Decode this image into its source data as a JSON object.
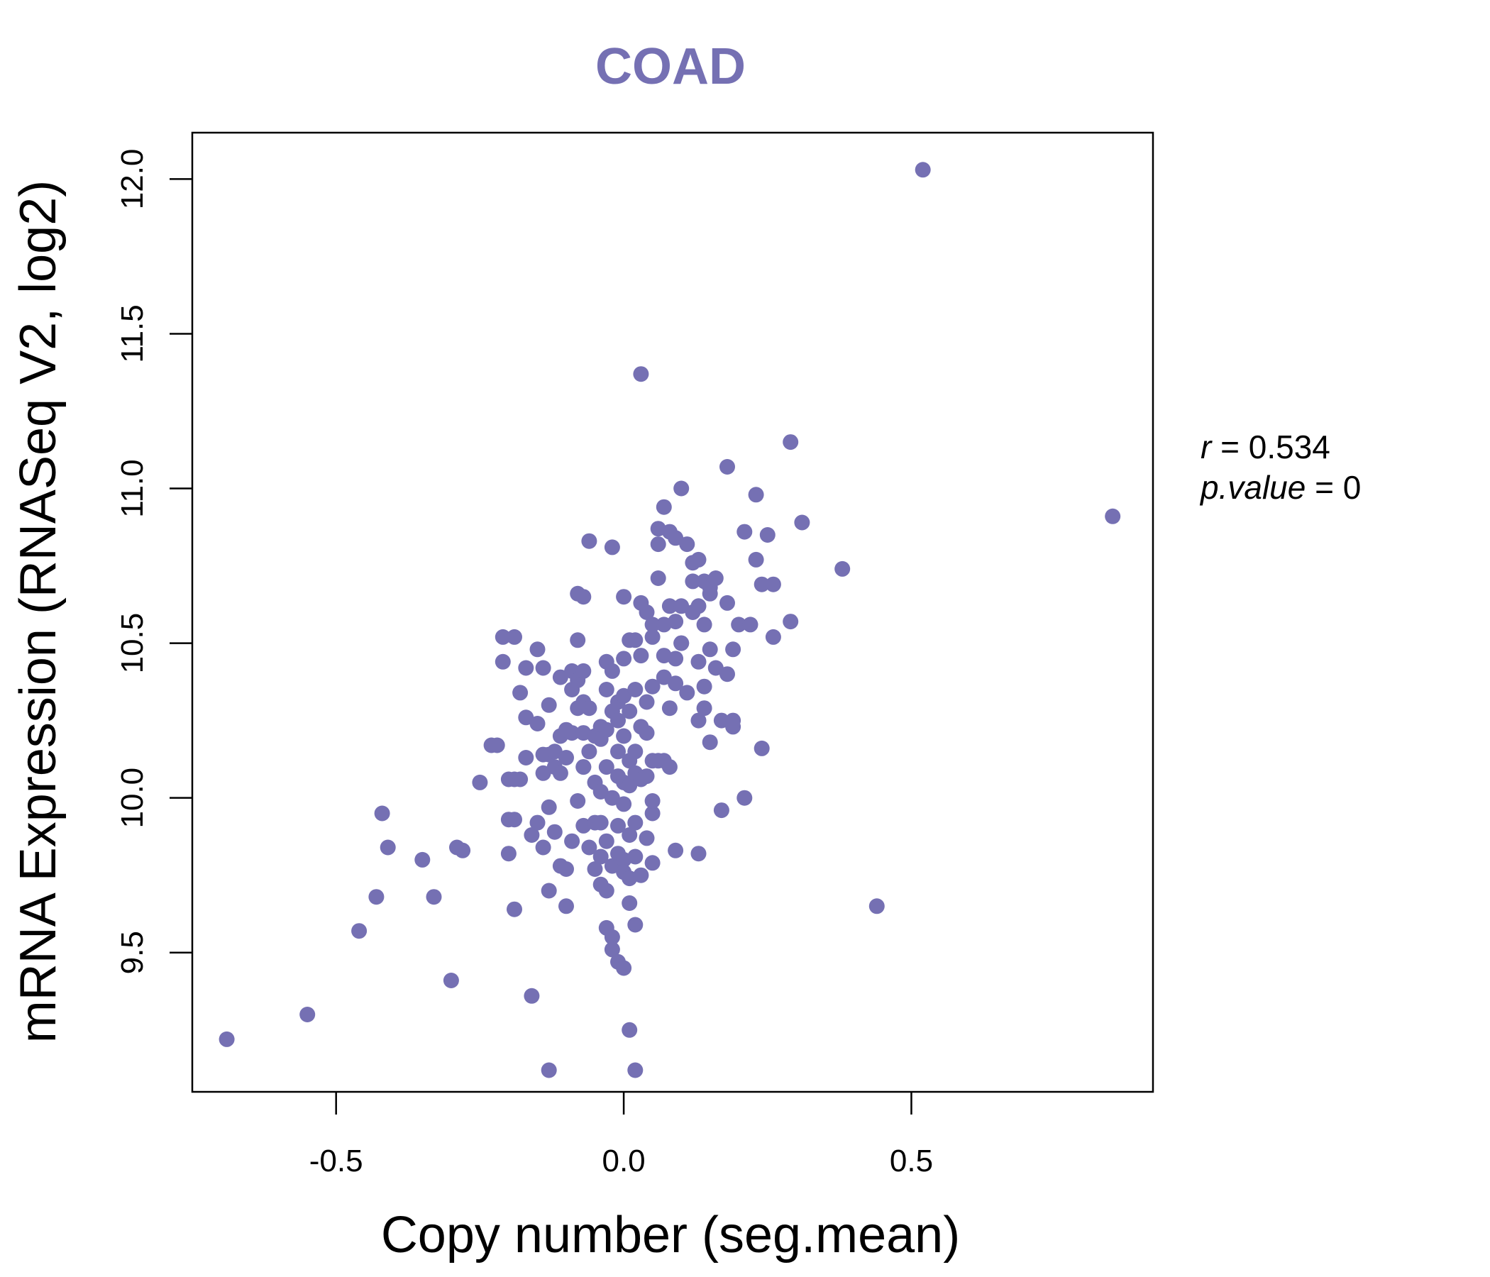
{
  "colors": {
    "accent": "#7570b3",
    "axis": "#000000",
    "background": "#ffffff"
  },
  "chart_data": {
    "type": "scatter",
    "title": "COAD",
    "xlabel": "Copy number (seg.mean)",
    "ylabel": "mRNA Expression (RNASeq V2, log2)",
    "xlim": [
      -0.75,
      0.92
    ],
    "ylim": [
      9.05,
      12.15
    ],
    "xticks": [
      -0.5,
      0.0,
      0.5
    ],
    "xtick_labels": [
      "-0.5",
      "0.0",
      "0.5"
    ],
    "yticks": [
      9.5,
      10.0,
      10.5,
      11.0,
      11.5,
      12.0
    ],
    "ytick_labels": [
      "9.5",
      "10.0",
      "10.5",
      "11.0",
      "11.5",
      "12.0"
    ],
    "grid": false,
    "annotation": {
      "r_symbol": "r",
      "r_equals": " = ",
      "r_value": "0.534",
      "p_symbol": "p.value",
      "p_equals": " = ",
      "p_value": "0"
    },
    "points": [
      [
        -0.69,
        9.22
      ],
      [
        -0.55,
        9.3
      ],
      [
        -0.46,
        9.57
      ],
      [
        -0.43,
        9.68
      ],
      [
        -0.42,
        9.95
      ],
      [
        -0.41,
        9.84
      ],
      [
        -0.35,
        9.8
      ],
      [
        -0.33,
        9.68
      ],
      [
        -0.3,
        9.41
      ],
      [
        -0.29,
        9.84
      ],
      [
        -0.28,
        9.83
      ],
      [
        -0.25,
        10.05
      ],
      [
        -0.23,
        10.17
      ],
      [
        -0.22,
        10.17
      ],
      [
        -0.21,
        10.52
      ],
      [
        -0.21,
        10.44
      ],
      [
        -0.2,
        9.93
      ],
      [
        -0.2,
        9.82
      ],
      [
        -0.2,
        10.06
      ],
      [
        -0.19,
        9.93
      ],
      [
        -0.19,
        10.52
      ],
      [
        -0.19,
        10.06
      ],
      [
        -0.19,
        9.64
      ],
      [
        -0.18,
        10.34
      ],
      [
        -0.18,
        10.06
      ],
      [
        -0.17,
        10.42
      ],
      [
        -0.17,
        10.13
      ],
      [
        -0.17,
        10.26
      ],
      [
        -0.16,
        9.36
      ],
      [
        -0.16,
        9.88
      ],
      [
        -0.15,
        9.92
      ],
      [
        -0.15,
        10.24
      ],
      [
        -0.15,
        10.48
      ],
      [
        -0.14,
        9.84
      ],
      [
        -0.14,
        10.42
      ],
      [
        -0.14,
        10.08
      ],
      [
        -0.14,
        10.14
      ],
      [
        -0.13,
        9.7
      ],
      [
        -0.13,
        9.12
      ],
      [
        -0.13,
        9.97
      ],
      [
        -0.13,
        10.3
      ],
      [
        -0.13,
        10.14
      ],
      [
        -0.12,
        9.89
      ],
      [
        -0.12,
        10.15
      ],
      [
        -0.12,
        10.1
      ],
      [
        -0.11,
        10.08
      ],
      [
        -0.11,
        10.2
      ],
      [
        -0.11,
        9.78
      ],
      [
        -0.11,
        10.39
      ],
      [
        -0.1,
        9.77
      ],
      [
        -0.1,
        9.65
      ],
      [
        -0.1,
        10.13
      ],
      [
        -0.1,
        10.22
      ],
      [
        -0.09,
        10.35
      ],
      [
        -0.09,
        10.41
      ],
      [
        -0.09,
        10.21
      ],
      [
        -0.09,
        9.86
      ],
      [
        -0.08,
        10.29
      ],
      [
        -0.08,
        10.38
      ],
      [
        -0.08,
        9.99
      ],
      [
        -0.08,
        10.66
      ],
      [
        -0.08,
        10.51
      ],
      [
        -0.07,
        10.1
      ],
      [
        -0.07,
        9.91
      ],
      [
        -0.07,
        10.21
      ],
      [
        -0.07,
        10.31
      ],
      [
        -0.07,
        10.65
      ],
      [
        -0.07,
        10.1
      ],
      [
        -0.07,
        10.41
      ],
      [
        -0.06,
        9.84
      ],
      [
        -0.06,
        10.29
      ],
      [
        -0.06,
        10.83
      ],
      [
        -0.06,
        10.15
      ],
      [
        -0.05,
        9.92
      ],
      [
        -0.05,
        10.05
      ],
      [
        -0.05,
        10.2
      ],
      [
        -0.05,
        9.77
      ],
      [
        -0.04,
        9.81
      ],
      [
        -0.04,
        10.23
      ],
      [
        -0.04,
        10.02
      ],
      [
        -0.04,
        10.19
      ],
      [
        -0.04,
        9.92
      ],
      [
        -0.04,
        9.72
      ],
      [
        -0.03,
        9.58
      ],
      [
        -0.03,
        9.7
      ],
      [
        -0.03,
        10.35
      ],
      [
        -0.03,
        10.1
      ],
      [
        -0.03,
        9.86
      ],
      [
        -0.03,
        10.22
      ],
      [
        -0.03,
        10.44
      ],
      [
        -0.02,
        9.55
      ],
      [
        -0.02,
        9.51
      ],
      [
        -0.02,
        10.81
      ],
      [
        -0.02,
        10.0
      ],
      [
        -0.02,
        10.28
      ],
      [
        -0.02,
        9.78
      ],
      [
        -0.02,
        10.41
      ],
      [
        -0.01,
        9.47
      ],
      [
        -0.01,
        10.25
      ],
      [
        -0.01,
        9.91
      ],
      [
        -0.01,
        10.07
      ],
      [
        -0.01,
        10.15
      ],
      [
        -0.01,
        9.82
      ],
      [
        -0.01,
        10.31
      ],
      [
        0.0,
        9.45
      ],
      [
        0.0,
        9.8
      ],
      [
        0.0,
        10.05
      ],
      [
        0.0,
        10.2
      ],
      [
        0.0,
        9.76
      ],
      [
        0.0,
        10.45
      ],
      [
        0.0,
        10.33
      ],
      [
        0.0,
        9.98
      ],
      [
        0.0,
        10.65
      ],
      [
        0.01,
        9.25
      ],
      [
        0.01,
        9.66
      ],
      [
        0.01,
        10.12
      ],
      [
        0.01,
        10.28
      ],
      [
        0.01,
        9.88
      ],
      [
        0.01,
        10.51
      ],
      [
        0.01,
        10.04
      ],
      [
        0.01,
        9.74
      ],
      [
        0.02,
        9.12
      ],
      [
        0.02,
        9.59
      ],
      [
        0.02,
        10.15
      ],
      [
        0.02,
        9.92
      ],
      [
        0.02,
        10.35
      ],
      [
        0.02,
        10.08
      ],
      [
        0.02,
        9.81
      ],
      [
        0.02,
        10.51
      ],
      [
        0.03,
        11.37
      ],
      [
        0.03,
        10.23
      ],
      [
        0.03,
        9.75
      ],
      [
        0.03,
        10.06
      ],
      [
        0.03,
        10.46
      ],
      [
        0.03,
        10.63
      ],
      [
        0.04,
        10.21
      ],
      [
        0.04,
        9.87
      ],
      [
        0.04,
        10.31
      ],
      [
        0.04,
        10.6
      ],
      [
        0.04,
        10.07
      ],
      [
        0.05,
        9.79
      ],
      [
        0.05,
        10.12
      ],
      [
        0.05,
        10.56
      ],
      [
        0.05,
        9.95
      ],
      [
        0.05,
        10.36
      ],
      [
        0.05,
        10.52
      ],
      [
        0.05,
        9.99
      ],
      [
        0.06,
        10.71
      ],
      [
        0.06,
        10.12
      ],
      [
        0.06,
        10.87
      ],
      [
        0.06,
        10.82
      ],
      [
        0.07,
        10.39
      ],
      [
        0.07,
        10.12
      ],
      [
        0.07,
        10.46
      ],
      [
        0.07,
        10.94
      ],
      [
        0.07,
        10.56
      ],
      [
        0.08,
        10.29
      ],
      [
        0.08,
        10.62
      ],
      [
        0.08,
        10.1
      ],
      [
        0.08,
        10.86
      ],
      [
        0.09,
        10.37
      ],
      [
        0.09,
        9.83
      ],
      [
        0.09,
        10.57
      ],
      [
        0.09,
        10.84
      ],
      [
        0.09,
        10.45
      ],
      [
        0.1,
        10.5
      ],
      [
        0.1,
        10.62
      ],
      [
        0.1,
        11.0
      ],
      [
        0.1,
        10.5
      ],
      [
        0.11,
        10.82
      ],
      [
        0.11,
        10.34
      ],
      [
        0.12,
        10.76
      ],
      [
        0.12,
        10.7
      ],
      [
        0.12,
        10.6
      ],
      [
        0.13,
        10.25
      ],
      [
        0.13,
        10.77
      ],
      [
        0.13,
        10.44
      ],
      [
        0.13,
        9.82
      ],
      [
        0.13,
        10.62
      ],
      [
        0.14,
        10.36
      ],
      [
        0.14,
        10.56
      ],
      [
        0.14,
        10.29
      ],
      [
        0.14,
        10.7
      ],
      [
        0.15,
        10.48
      ],
      [
        0.15,
        10.68
      ],
      [
        0.15,
        10.18
      ],
      [
        0.15,
        10.66
      ],
      [
        0.16,
        10.42
      ],
      [
        0.16,
        10.71
      ],
      [
        0.17,
        9.96
      ],
      [
        0.17,
        10.25
      ],
      [
        0.18,
        10.4
      ],
      [
        0.18,
        11.07
      ],
      [
        0.18,
        10.63
      ],
      [
        0.19,
        10.25
      ],
      [
        0.19,
        10.48
      ],
      [
        0.19,
        10.23
      ],
      [
        0.2,
        10.56
      ],
      [
        0.21,
        10.0
      ],
      [
        0.21,
        10.86
      ],
      [
        0.22,
        10.56
      ],
      [
        0.23,
        10.98
      ],
      [
        0.23,
        10.77
      ],
      [
        0.24,
        10.69
      ],
      [
        0.24,
        10.16
      ],
      [
        0.25,
        10.85
      ],
      [
        0.26,
        10.52
      ],
      [
        0.26,
        10.69
      ],
      [
        0.29,
        11.15
      ],
      [
        0.29,
        10.57
      ],
      [
        0.31,
        10.89
      ],
      [
        0.38,
        10.74
      ],
      [
        0.44,
        9.65
      ],
      [
        0.52,
        12.03
      ],
      [
        0.85,
        10.91
      ]
    ]
  }
}
